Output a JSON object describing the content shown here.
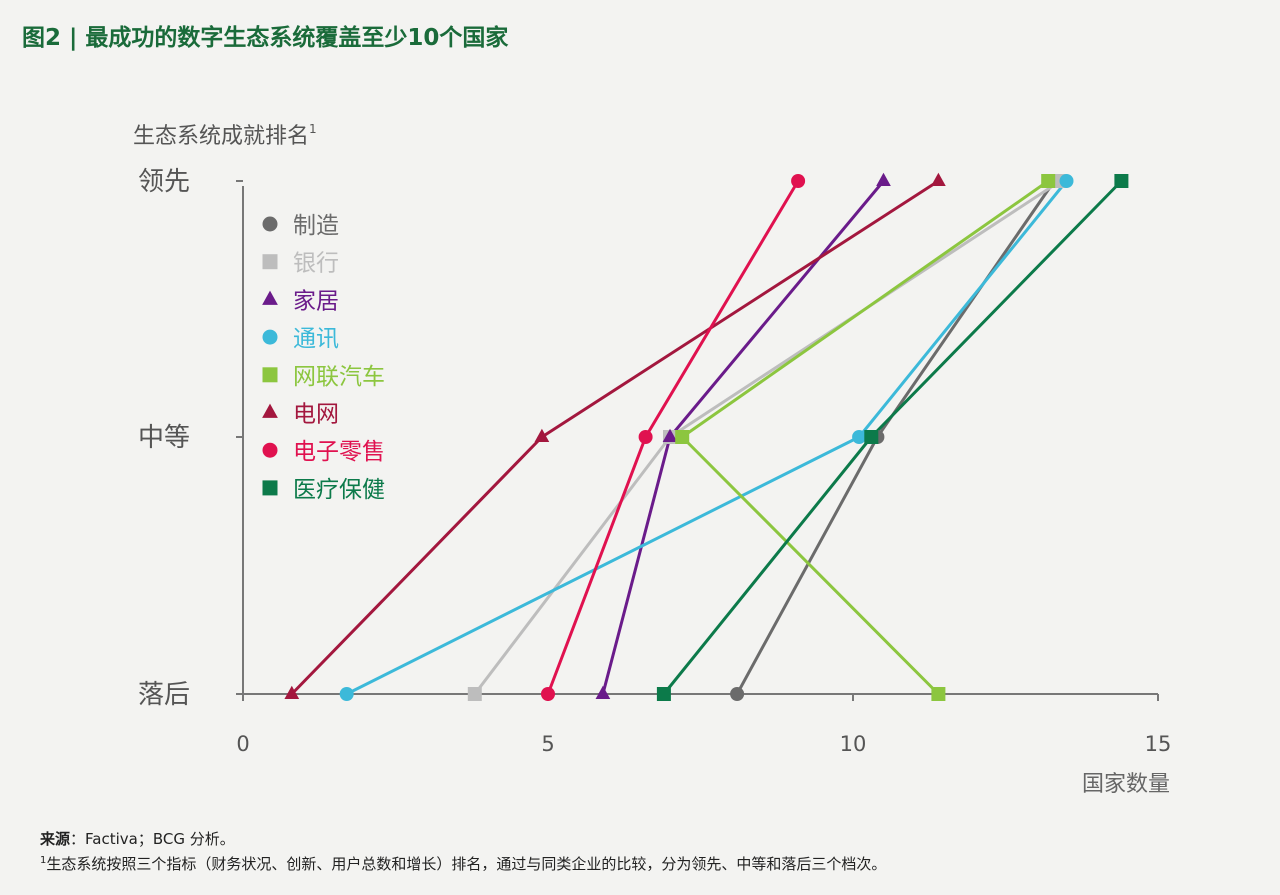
{
  "title": "图2 | 最成功的数字生态系统覆盖至少10个国家",
  "chart_data": {
    "type": "line",
    "ylabel": "生态系统成就排名",
    "ylabel_sup": "1",
    "xlabel": "国家数量",
    "xlim": [
      0,
      15
    ],
    "x_ticks": [
      "0",
      "5",
      "10",
      "15"
    ],
    "y_levels": [
      "落后",
      "中等",
      "领先"
    ],
    "grid": false,
    "legend_position": "left-inside",
    "series": [
      {
        "name": "制造",
        "color": "#6b6b6b",
        "marker": "circle",
        "x": [
          8.1,
          10.4,
          13.3
        ],
        "y": [
          "落后",
          "中等",
          "领先"
        ]
      },
      {
        "name": "银行",
        "color": "#bdbdbd",
        "marker": "square",
        "x": [
          3.8,
          7.0,
          13.4
        ],
        "y": [
          "落后",
          "中等",
          "领先"
        ]
      },
      {
        "name": "家居",
        "color": "#6a1b8a",
        "marker": "triangle",
        "x": [
          5.9,
          7.0,
          10.5
        ],
        "y": [
          "落后",
          "中等",
          "领先"
        ]
      },
      {
        "name": "通讯",
        "color": "#3cb9d9",
        "marker": "circle",
        "x": [
          1.7,
          10.1,
          13.5
        ],
        "y": [
          "落后",
          "中等",
          "领先"
        ]
      },
      {
        "name": "网联汽车",
        "color": "#8cc63f",
        "marker": "square",
        "x": [
          11.4,
          7.2,
          13.2
        ],
        "y": [
          "落后",
          "中等",
          "领先"
        ]
      },
      {
        "name": "电网",
        "color": "#a3173e",
        "marker": "triangle",
        "x": [
          0.8,
          4.9,
          11.4
        ],
        "y": [
          "落后",
          "中等",
          "领先"
        ]
      },
      {
        "name": "电子零售",
        "color": "#e0114f",
        "marker": "circle",
        "x": [
          5.0,
          6.6,
          9.1
        ],
        "y": [
          "落后",
          "中等",
          "领先"
        ]
      },
      {
        "name": "医疗保健",
        "color": "#0c7a4a",
        "marker": "square",
        "x": [
          6.9,
          10.3,
          14.4
        ],
        "y": [
          "落后",
          "中等",
          "领先"
        ]
      }
    ]
  },
  "footer": {
    "source_label": "来源",
    "source_text": "：Factiva；BCG 分析。",
    "note_sup": "1",
    "note_text": "生态系统按照三个指标（财务状况、创新、用户总数和增长）排名，通过与同类企业的比较，分为领先、中等和落后三个档次。"
  }
}
